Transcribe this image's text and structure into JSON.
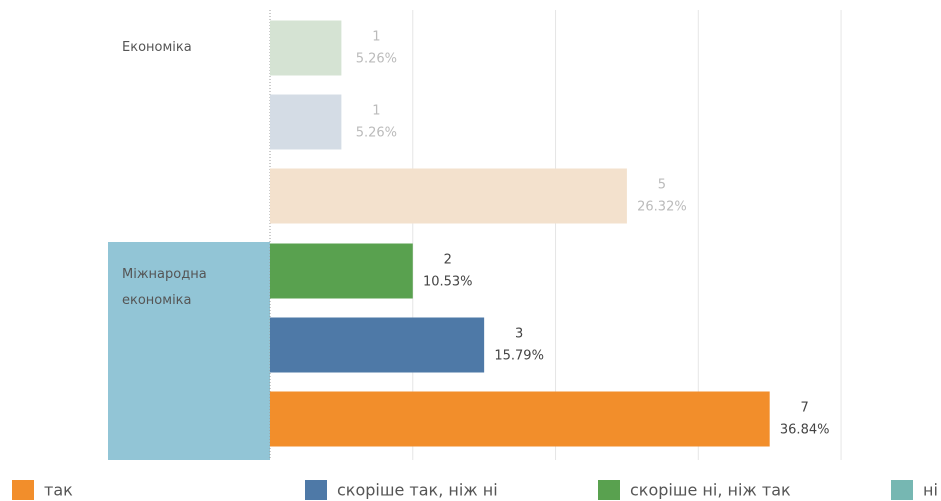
{
  "chart_data": {
    "type": "bar",
    "orientation": "horizontal",
    "xlim": [
      0,
      9.4
    ],
    "xticks": [
      0,
      2,
      4,
      6,
      8
    ],
    "grid": true,
    "highlighted_group": 1,
    "groups": [
      {
        "name": "Економіка",
        "rows": [
          {
            "value": 1,
            "share_label": "5.26%",
            "color": "#d5e3d3",
            "label_color": "#bbbbbb"
          },
          {
            "value": 1,
            "share_label": "5.26%",
            "color": "#d4dce5",
            "label_color": "#bbbbbb"
          },
          {
            "value": 5,
            "share_label": "26.32%",
            "color": "#f3e1cd",
            "label_color": "#bbbbbb"
          }
        ]
      },
      {
        "name": "Міжнародна економіка",
        "rows": [
          {
            "value": 2,
            "share_label": "10.53%",
            "color": "#59a14f",
            "label_color": "#444444"
          },
          {
            "value": 3,
            "share_label": "15.79%",
            "color": "#4e79a7",
            "label_color": "#444444"
          },
          {
            "value": 7,
            "share_label": "36.84%",
            "color": "#f28e2b",
            "label_color": "#444444"
          }
        ]
      }
    ],
    "legend": [
      {
        "name": "так",
        "color": "#f28e2b"
      },
      {
        "name": "скоріше так, ніж ні",
        "color": "#4e79a7"
      },
      {
        "name": "скоріше ні, ніж так",
        "color": "#59a14f"
      },
      {
        "name": "ні",
        "color": "#76b7b2"
      }
    ]
  }
}
